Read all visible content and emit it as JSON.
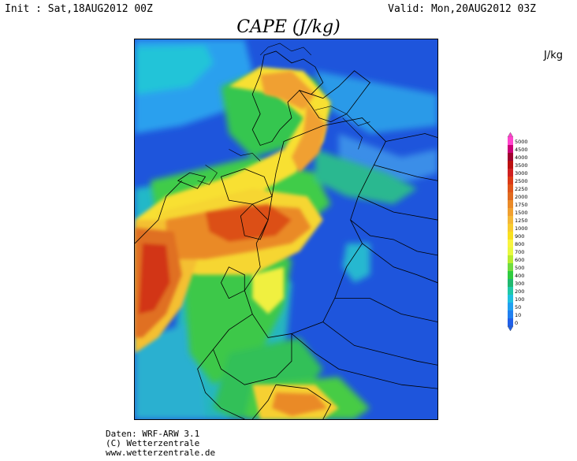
{
  "header": {
    "init": "Init : Sat,18AUG2012 00Z",
    "valid": "Valid: Mon,20AUG2012 03Z",
    "title": "CAPE (J/kg)"
  },
  "legend": {
    "unit": "J/kg",
    "levels": [
      "5000",
      "4500",
      "4000",
      "3500",
      "3000",
      "2500",
      "2250",
      "2000",
      "1750",
      "1500",
      "1250",
      "1000",
      "900",
      "800",
      "700",
      "600",
      "500",
      "400",
      "300",
      "200",
      "100",
      "50",
      "10",
      "0"
    ],
    "colors": [
      "#ff44cc",
      "#cc0077",
      "#a0002f",
      "#bb1010",
      "#d02020",
      "#dc3a16",
      "#e0551a",
      "#e06a20",
      "#ea8a28",
      "#f0a030",
      "#f4b838",
      "#f8cc30",
      "#f8e020",
      "#f8f440",
      "#e8f840",
      "#b8ec30",
      "#70dc40",
      "#30cc40",
      "#20b870",
      "#20c8a8",
      "#20c0e0",
      "#20a0f0",
      "#2080f0",
      "#2060e8"
    ]
  },
  "credits": {
    "line1": "Daten: WRF-ARW 3.1",
    "line2": "(C) Wetterzentrale",
    "line3": "www.wetterzentrale.de"
  }
}
